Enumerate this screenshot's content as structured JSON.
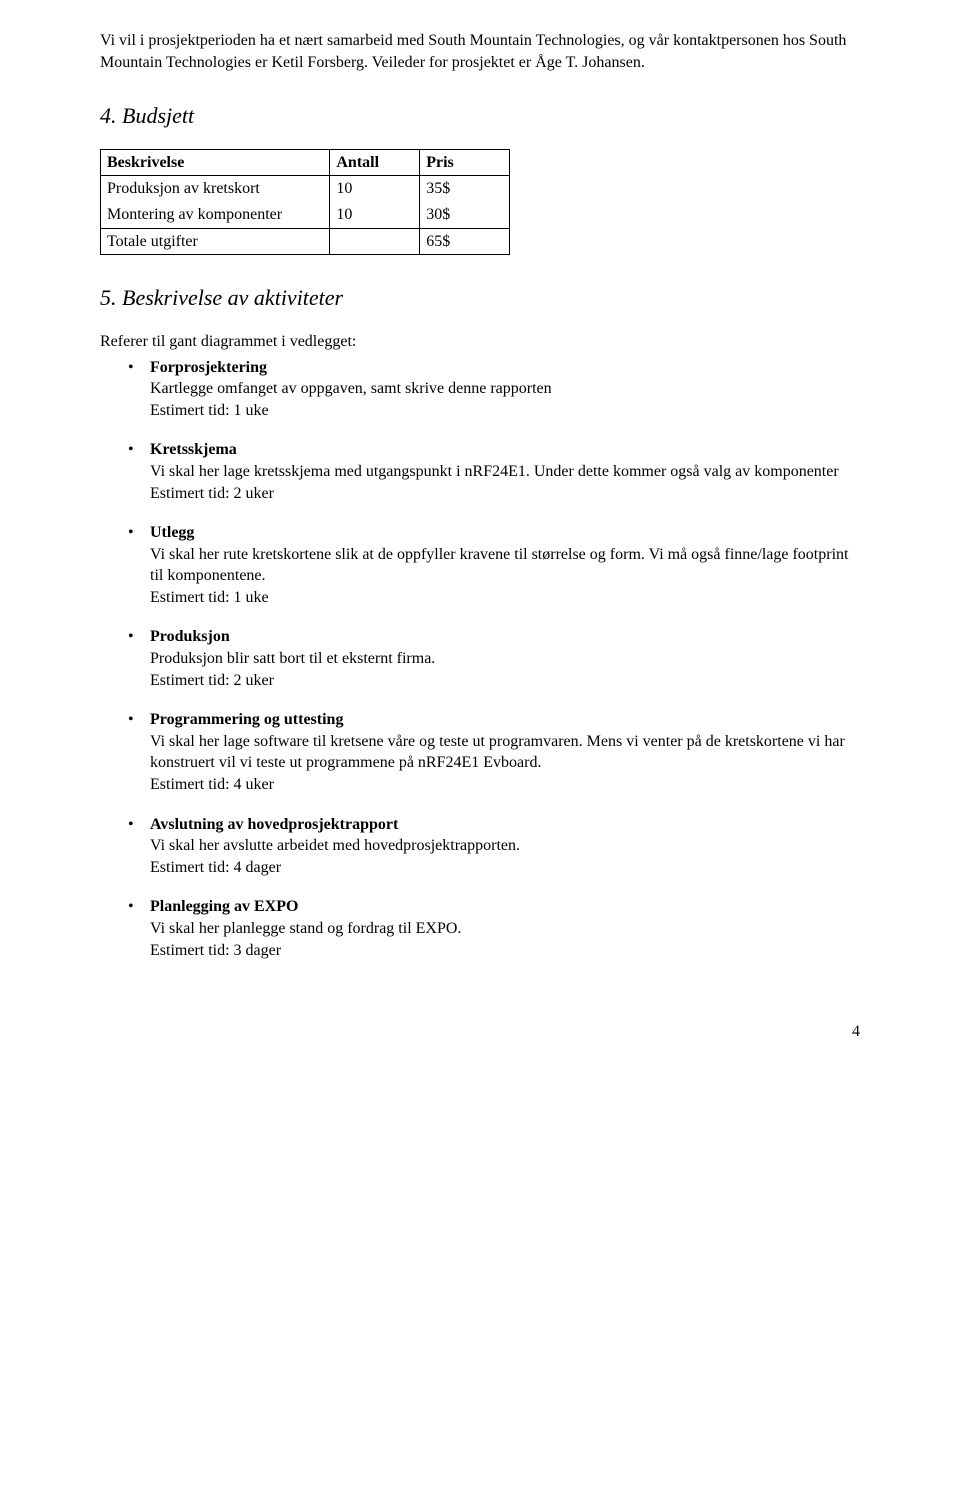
{
  "intro": "Vi vil i prosjektperioden ha et nært samarbeid med South Mountain Technologies, og vår kontaktpersonen hos South Mountain Technologies er Ketil Forsberg. Veileder for prosjektet er Åge T. Johansen.",
  "section4": {
    "title": "4. Budsjett",
    "table": {
      "headers": [
        "Beskrivelse",
        "Antall",
        "Pris"
      ],
      "rows": [
        [
          "Produksjon av kretskort",
          "10",
          "35$"
        ],
        [
          "Montering av komponenter",
          "10",
          "30$"
        ],
        [
          "Totale utgifter",
          "",
          "65$"
        ]
      ]
    }
  },
  "section5": {
    "title": "5. Beskrivelse av aktiviteter",
    "intro": "Referer til gant diagrammet i vedlegget:",
    "items": [
      {
        "title": "Forprosjektering",
        "desc": "Kartlegge omfanget av oppgaven, samt skrive denne rapporten",
        "time": "Estimert tid: 1 uke"
      },
      {
        "title": "Kretsskjema",
        "desc": "Vi skal her lage kretsskjema med utgangspunkt i nRF24E1. Under dette kommer også valg av komponenter",
        "time": "Estimert tid: 2 uker"
      },
      {
        "title": "Utlegg",
        "desc": "Vi skal her rute kretskortene slik at de oppfyller kravene til størrelse og form. Vi må også finne/lage footprint til komponentene.",
        "time": "Estimert tid: 1 uke"
      },
      {
        "title": "Produksjon",
        "desc": "Produksjon blir satt bort til et eksternt firma.",
        "time": "Estimert tid: 2 uker"
      },
      {
        "title": "Programmering og uttesting",
        "desc": "Vi skal her lage software til kretsene våre og teste ut programvaren. Mens vi venter på de kretskortene vi har konstruert vil vi teste ut programmene på nRF24E1 Evboard.",
        "time": "Estimert tid: 4 uker"
      },
      {
        "title": "Avslutning av hovedprosjektrapport",
        "desc": "Vi skal her avslutte arbeidet med hovedprosjektrapporten.",
        "time": "Estimert tid: 4 dager"
      },
      {
        "title": "Planlegging av EXPO",
        "desc": "Vi skal her planlegge stand og fordrag til EXPO.",
        "time": "Estimert tid: 3 dager"
      }
    ]
  },
  "pageNumber": "4"
}
